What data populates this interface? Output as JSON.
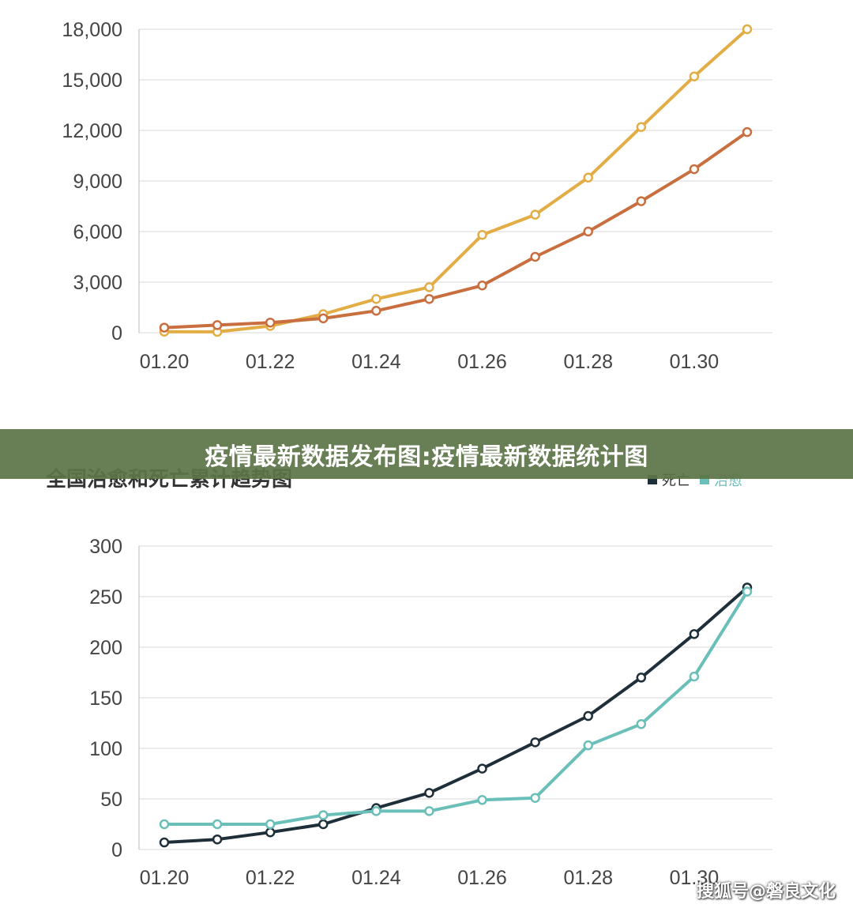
{
  "banner": {
    "title": "疫情最新数据发布图:疫情最新数据统计图"
  },
  "watermark": {
    "text": "搜狐号@磐良文化"
  },
  "chart_data": [
    {
      "type": "line",
      "title": "",
      "xlabel": "",
      "ylabel": "",
      "x": [
        "01.20",
        "01.21",
        "01.22",
        "01.23",
        "01.24",
        "01.25",
        "01.26",
        "01.27",
        "01.28",
        "01.29",
        "01.30",
        "01.31"
      ],
      "x_tick_labels": [
        "01.20",
        "01.22",
        "01.24",
        "01.26",
        "01.28",
        "01.30"
      ],
      "ylim": [
        0,
        18000
      ],
      "y_ticks": [
        0,
        3000,
        6000,
        9000,
        12000,
        15000,
        18000
      ],
      "y_tick_labels": [
        "0",
        "3,000",
        "6,000",
        "9,000",
        "12,000",
        "15,000",
        "18,000"
      ],
      "grid": true,
      "series": [
        {
          "name": "",
          "color": "#e3ad45",
          "values": [
            60,
            50,
            400,
            1100,
            2000,
            2700,
            5800,
            7000,
            9200,
            12200,
            15200,
            18000
          ]
        },
        {
          "name": "",
          "color": "#c96f3f",
          "values": [
            300,
            450,
            600,
            850,
            1300,
            2000,
            2800,
            4500,
            6000,
            7800,
            9700,
            11900
          ]
        }
      ]
    },
    {
      "type": "line",
      "title": "全国治愈和死亡累计趋势图",
      "xlabel": "",
      "ylabel": "",
      "legend_position": "top-right",
      "x": [
        "01.20",
        "01.21",
        "01.22",
        "01.23",
        "01.24",
        "01.25",
        "01.26",
        "01.27",
        "01.28",
        "01.29",
        "01.30",
        "01.31"
      ],
      "x_tick_labels": [
        "01.20",
        "01.22",
        "01.24",
        "01.26",
        "01.28",
        "01.30"
      ],
      "ylim": [
        0,
        300
      ],
      "y_ticks": [
        0,
        50,
        100,
        150,
        200,
        250,
        300
      ],
      "y_tick_labels": [
        "0",
        "50",
        "100",
        "150",
        "200",
        "250",
        "300"
      ],
      "grid": true,
      "series": [
        {
          "name": "死亡",
          "color": "#1f2f3a",
          "values": [
            7,
            10,
            17,
            25,
            41,
            56,
            80,
            106,
            132,
            170,
            213,
            259
          ]
        },
        {
          "name": "治愈",
          "color": "#6bbfb9",
          "values": [
            25,
            25,
            25,
            34,
            38,
            38,
            49,
            51,
            103,
            124,
            171,
            255
          ]
        }
      ]
    }
  ]
}
